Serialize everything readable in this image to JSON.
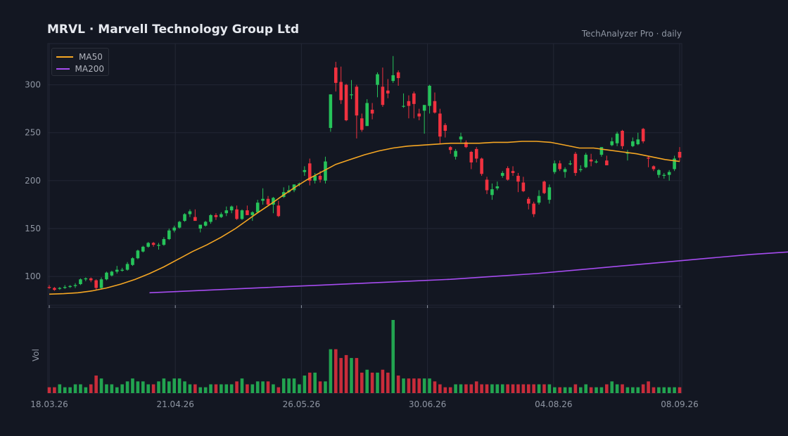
{
  "header": {
    "title": "MRVL  ·  Marvell Technology Group Ltd",
    "subtitle": "TechAnalyzer Pro · daily"
  },
  "legend": {
    "items": [
      {
        "label": "MA50",
        "color": "#f5a623"
      },
      {
        "label": "MA200",
        "color": "#a64cf0"
      }
    ]
  },
  "volume_axis_label": "Vol",
  "colors": {
    "up": "#26c35a",
    "down": "#f0313f",
    "grid": "#232735",
    "axis_text": "#8f96a3"
  },
  "chart_data": {
    "type": "candlestick",
    "x_ticks": [
      "18.03.26",
      "21.04.26",
      "26.05.26",
      "30.06.26",
      "04.08.26",
      "08.09.26"
    ],
    "y_ticks": [
      100,
      150,
      200,
      250,
      300
    ],
    "ylim": [
      70,
      343
    ],
    "ohlc": [
      [
        89,
        91,
        87,
        88
      ],
      [
        88,
        89,
        85,
        86
      ],
      [
        87,
        89,
        86,
        88
      ],
      [
        88,
        91,
        87,
        89
      ],
      [
        89,
        91,
        88,
        90
      ],
      [
        90,
        93,
        88,
        91
      ],
      [
        92,
        98,
        91,
        97
      ],
      [
        97,
        99,
        95,
        98
      ],
      [
        98,
        99,
        94,
        96
      ],
      [
        96,
        97,
        86,
        88
      ],
      [
        88,
        99,
        87,
        97
      ],
      [
        97,
        105,
        96,
        104
      ],
      [
        101,
        106,
        100,
        105
      ],
      [
        105,
        111,
        103,
        107
      ],
      [
        106,
        109,
        105,
        107
      ],
      [
        107,
        115,
        106,
        113
      ],
      [
        112,
        120,
        111,
        119
      ],
      [
        119,
        128,
        118,
        127
      ],
      [
        126,
        132,
        125,
        131
      ],
      [
        131,
        136,
        130,
        135
      ],
      [
        135,
        136,
        131,
        133
      ],
      [
        132,
        135,
        128,
        133
      ],
      [
        133,
        141,
        132,
        139
      ],
      [
        139,
        150,
        138,
        148
      ],
      [
        148,
        153,
        146,
        151
      ],
      [
        151,
        158,
        150,
        157
      ],
      [
        158,
        166,
        157,
        165
      ],
      [
        165,
        170,
        162,
        168
      ],
      [
        162,
        170,
        158,
        158
      ],
      [
        150,
        153,
        146,
        154
      ],
      [
        153,
        158,
        152,
        157
      ],
      [
        157,
        165,
        155,
        164
      ],
      [
        164,
        166,
        159,
        162
      ],
      [
        162,
        167,
        161,
        165
      ],
      [
        166,
        173,
        163,
        169
      ],
      [
        169,
        174,
        166,
        173
      ],
      [
        170,
        174,
        159,
        160
      ],
      [
        160,
        170,
        159,
        169
      ],
      [
        169,
        174,
        164,
        164
      ],
      [
        164,
        168,
        158,
        167
      ],
      [
        167,
        180,
        166,
        177
      ],
      [
        179,
        192,
        175,
        181
      ],
      [
        181,
        184,
        174,
        175
      ],
      [
        175,
        183,
        166,
        182
      ],
      [
        174,
        179,
        162,
        163
      ],
      [
        183,
        193,
        182,
        188
      ],
      [
        188,
        195,
        187,
        190
      ],
      [
        190,
        196,
        188,
        196
      ],
      [
        196,
        198,
        194,
        197
      ],
      [
        209,
        215,
        205,
        211
      ],
      [
        218,
        223,
        195,
        200
      ],
      [
        200,
        208,
        197,
        205
      ],
      [
        205,
        210,
        198,
        201
      ],
      [
        200,
        225,
        197,
        220
      ],
      [
        255,
        290,
        251,
        290
      ],
      [
        318,
        324,
        293,
        302
      ],
      [
        303,
        319,
        280,
        284
      ],
      [
        300,
        301,
        262,
        263
      ],
      [
        290,
        305,
        285,
        290
      ],
      [
        298,
        300,
        244,
        268
      ],
      [
        265,
        270,
        251,
        253
      ],
      [
        257,
        285,
        257,
        281
      ],
      [
        274,
        281,
        264,
        270
      ],
      [
        300,
        313,
        287,
        311
      ],
      [
        298,
        318,
        277,
        279
      ],
      [
        294,
        306,
        286,
        291
      ],
      [
        304,
        330,
        302,
        310
      ],
      [
        313,
        315,
        299,
        307
      ],
      [
        278,
        291,
        276,
        278
      ],
      [
        283,
        289,
        265,
        278
      ],
      [
        291,
        293,
        265,
        280
      ],
      [
        270,
        275,
        263,
        267
      ],
      [
        273,
        278,
        249,
        279
      ],
      [
        278,
        300,
        270,
        299
      ],
      [
        283,
        292,
        270,
        271
      ],
      [
        270,
        275,
        238,
        246
      ],
      [
        258,
        260,
        245,
        252
      ],
      [
        235,
        236,
        228,
        232
      ],
      [
        225,
        233,
        222,
        231
      ],
      [
        243,
        250,
        240,
        246
      ],
      [
        240,
        242,
        234,
        235
      ],
      [
        230,
        231,
        212,
        219
      ],
      [
        233,
        235,
        219,
        223
      ],
      [
        223,
        224,
        205,
        207
      ],
      [
        201,
        204,
        186,
        190
      ],
      [
        185,
        197,
        180,
        191
      ],
      [
        192,
        199,
        190,
        194
      ],
      [
        205,
        210,
        203,
        208
      ],
      [
        213,
        215,
        200,
        201
      ],
      [
        210,
        215,
        205,
        208
      ],
      [
        205,
        208,
        188,
        199
      ],
      [
        198,
        204,
        188,
        189
      ],
      [
        181,
        183,
        170,
        176
      ],
      [
        176,
        178,
        162,
        165
      ],
      [
        177,
        190,
        175,
        184
      ],
      [
        199,
        200,
        186,
        187
      ],
      [
        180,
        196,
        176,
        193
      ],
      [
        209,
        221,
        207,
        218
      ],
      [
        218,
        221,
        210,
        212
      ],
      [
        209,
        214,
        203,
        212
      ],
      [
        217,
        221,
        216,
        218
      ],
      [
        228,
        230,
        205,
        208
      ],
      [
        211,
        216,
        209,
        212
      ],
      [
        214,
        229,
        213,
        227
      ],
      [
        222,
        228,
        215,
        220
      ],
      [
        219,
        222,
        218,
        220
      ],
      [
        227,
        234,
        225,
        235
      ],
      [
        221,
        226,
        216,
        216
      ],
      [
        237,
        245,
        236,
        241
      ],
      [
        239,
        251,
        236,
        249
      ],
      [
        252,
        253,
        233,
        236
      ],
      [
        229,
        232,
        221,
        229
      ],
      [
        236,
        245,
        235,
        241
      ],
      [
        238,
        250,
        237,
        243
      ],
      [
        254,
        255,
        239,
        241
      ],
      [
        224,
        226,
        214,
        223
      ],
      [
        215,
        216,
        210,
        212
      ],
      [
        206,
        212,
        203,
        211
      ],
      [
        205,
        208,
        202,
        206
      ],
      [
        206,
        211,
        200,
        209
      ],
      [
        212,
        226,
        210,
        223
      ],
      [
        230,
        235,
        220,
        224
      ]
    ],
    "volume": [
      2,
      2,
      3,
      2,
      2,
      3,
      3,
      2,
      3,
      6,
      5,
      3,
      3,
      2,
      3,
      4,
      5,
      4,
      4,
      3,
      3,
      4,
      5,
      4,
      5,
      5,
      4,
      3,
      3,
      2,
      2,
      3,
      3,
      3,
      3,
      3,
      4,
      5,
      3,
      3,
      4,
      4,
      4,
      3,
      2,
      5,
      5,
      5,
      3,
      6,
      7,
      7,
      4,
      4,
      15,
      15,
      12,
      13,
      12,
      12,
      7,
      8,
      7,
      7,
      8,
      7,
      25,
      6,
      5,
      5,
      5,
      5,
      5,
      5,
      4,
      3,
      2,
      2,
      3,
      3,
      3,
      3,
      4,
      3,
      3,
      3,
      3,
      3,
      3,
      3,
      3,
      3,
      3,
      3,
      3,
      3,
      3,
      2,
      2,
      2,
      2,
      3,
      2,
      3,
      2,
      2,
      2,
      3,
      4,
      3,
      3,
      2,
      2,
      2,
      3,
      4,
      2,
      2,
      2,
      2,
      2,
      2
    ],
    "ma50": [
      [
        0,
        81.5
      ],
      [
        8,
        82
      ],
      [
        16,
        83
      ],
      [
        24,
        85
      ],
      [
        32,
        88
      ],
      [
        40,
        92
      ],
      [
        48,
        97
      ],
      [
        56,
        103
      ],
      [
        64,
        110
      ],
      [
        72,
        118
      ],
      [
        80,
        126
      ],
      [
        88,
        133
      ],
      [
        96,
        141
      ],
      [
        104,
        150
      ],
      [
        110,
        158
      ],
      [
        116,
        166
      ],
      [
        124,
        176
      ],
      [
        130,
        184
      ],
      [
        138,
        194
      ],
      [
        144,
        201
      ],
      [
        152,
        209
      ],
      [
        160,
        217
      ],
      [
        168,
        222
      ],
      [
        176,
        227
      ],
      [
        184,
        231
      ],
      [
        192,
        234
      ],
      [
        200,
        236
      ],
      [
        208,
        237
      ],
      [
        216,
        238
      ],
      [
        224,
        239
      ],
      [
        232,
        239
      ],
      [
        240,
        239
      ],
      [
        248,
        240
      ],
      [
        256,
        240
      ],
      [
        264,
        241
      ],
      [
        272,
        241
      ],
      [
        280,
        240
      ],
      [
        288,
        237
      ],
      [
        296,
        234
      ],
      [
        304,
        234
      ],
      [
        312,
        232
      ],
      [
        320,
        230
      ],
      [
        328,
        228
      ],
      [
        336,
        225
      ],
      [
        344,
        222
      ],
      [
        352,
        220
      ]
    ],
    "ma200": [
      [
        56,
        83
      ],
      [
        80,
        85
      ],
      [
        104,
        87
      ],
      [
        128,
        89
      ],
      [
        152,
        91
      ],
      [
        176,
        93
      ],
      [
        200,
        95
      ],
      [
        224,
        97
      ],
      [
        248,
        100
      ],
      [
        272,
        103
      ],
      [
        296,
        107
      ],
      [
        320,
        111
      ],
      [
        344,
        115
      ],
      [
        368,
        119
      ],
      [
        392,
        123
      ],
      [
        416,
        126
      ],
      [
        440,
        129
      ],
      [
        464,
        131
      ],
      [
        488,
        133
      ],
      [
        512,
        135
      ],
      [
        536,
        137
      ],
      [
        560,
        139
      ],
      [
        584,
        142
      ],
      [
        608,
        145
      ],
      [
        632,
        148
      ],
      [
        656,
        150
      ],
      [
        680,
        152
      ]
    ],
    "ma_x_domain": [
      0,
      352
    ]
  }
}
